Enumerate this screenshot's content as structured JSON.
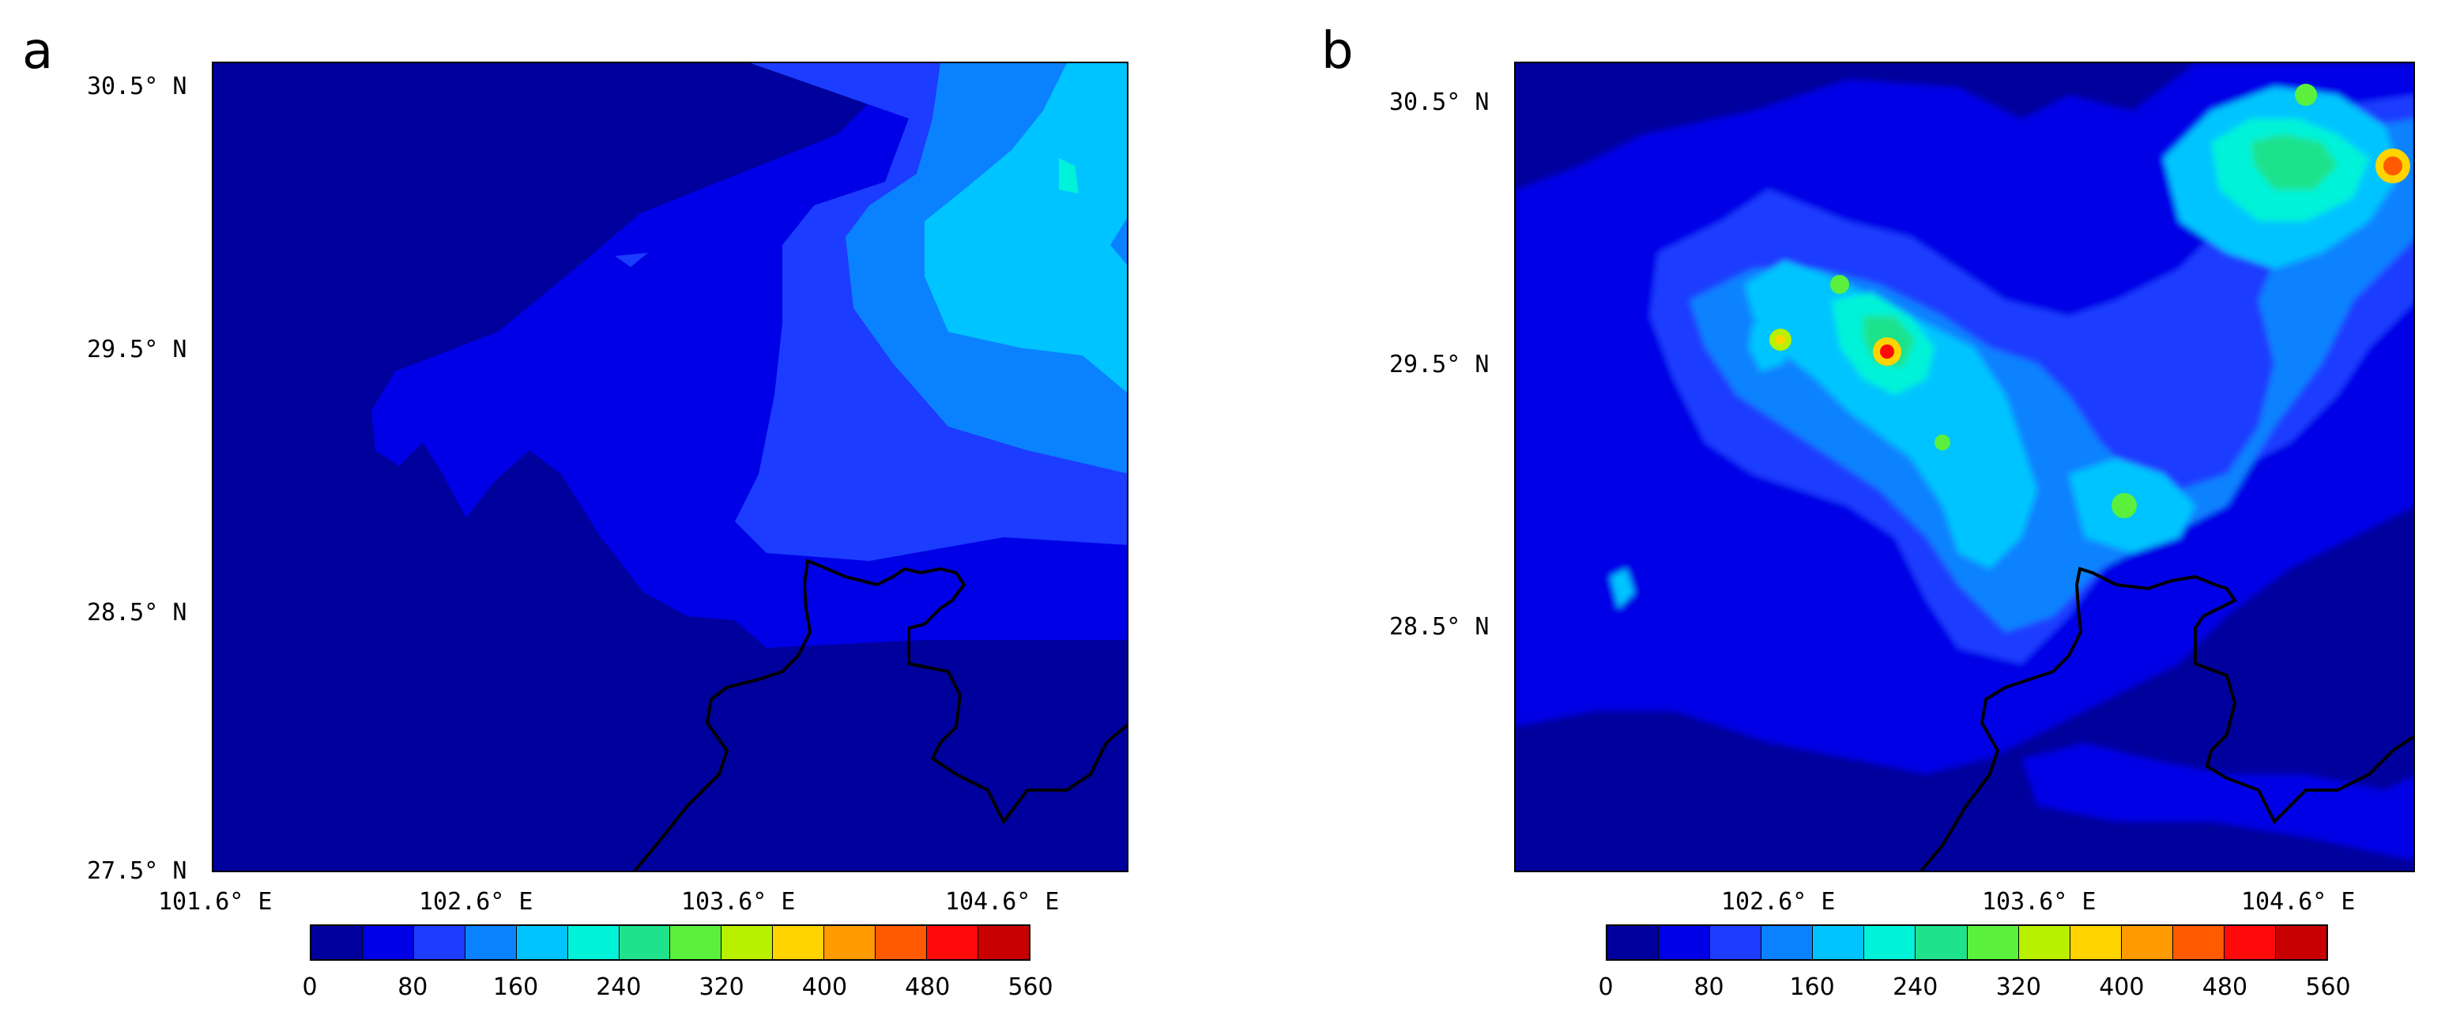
{
  "panels": [
    {
      "letter": "a",
      "lat_ticks": [
        "30.5° N",
        "29.5° N",
        "28.5° N",
        "27.5° N"
      ],
      "lon_ticks": [
        "101.6° E",
        "102.6° E",
        "103.6° E",
        "104.6° E"
      ]
    },
    {
      "letter": "b",
      "lat_ticks": [
        "30.5° N",
        "29.5° N",
        "28.5° N"
      ],
      "lon_ticks": [
        "102.6° E",
        "103.6° E",
        "104.6° E"
      ]
    }
  ],
  "colorbar": {
    "labels": [
      "0",
      "80",
      "160",
      "240",
      "320",
      "400",
      "480",
      "560"
    ],
    "colors": [
      "#00009c",
      "#0000e6",
      "#1c3cff",
      "#0a82ff",
      "#00c4ff",
      "#00f2d8",
      "#1ee28c",
      "#5af03c",
      "#b8f000",
      "#ffd400",
      "#ff9a00",
      "#ff5a00",
      "#ff0a0a",
      "#c80000"
    ]
  }
}
